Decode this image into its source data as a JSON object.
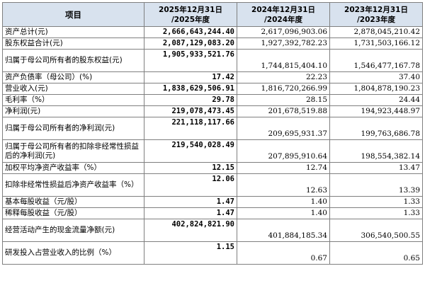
{
  "header": {
    "item": "项目",
    "col2025_line1": "2025年12月31日",
    "col2025_line2": "/2025年度",
    "col2024_line1": "2024年12月31日",
    "col2024_line2": "/2024年度",
    "col2023_line1": "2023年12月31日",
    "col2023_line2": "/2023年度"
  },
  "rows": [
    {
      "label": "资产总计(元)",
      "y2025": "2,666,643,244.40",
      "y2024": "2,617,096,903.06",
      "y2023": "2,878,045,210.42"
    },
    {
      "label": "股东权益合计(元)",
      "y2025": "2,087,129,083.20",
      "y2024": "1,927,392,782.23",
      "y2023": "1,731,503,166.12"
    },
    {
      "label": "归属于母公司所有者的股东权益(元)",
      "y2025": "1,905,933,521.76",
      "y2024": "1,744,815,404.10",
      "y2023": "1,546,477,167.78"
    },
    {
      "label": "资产负债率（母公司）(%)",
      "y2025": "17.42",
      "y2024": "22.23",
      "y2023": "37.40"
    },
    {
      "label": "营业收入(元)",
      "y2025": "1,838,629,506.91",
      "y2024": "1,816,720,266.99",
      "y2023": "1,804,878,190.23"
    },
    {
      "label": "毛利率（%）",
      "y2025": "29.78",
      "y2024": "28.15",
      "y2023": "24.44"
    },
    {
      "label": "净利润(元)",
      "y2025": "219,078,473.45",
      "y2024": "201,678,519.88",
      "y2023": "194,923,448.97"
    },
    {
      "label": "归属于母公司所有者的净利润(元)",
      "y2025": "221,118,117.66",
      "y2024": "209,695,931.37",
      "y2023": "199,763,686.78"
    },
    {
      "label": "归属于母公司所有者的扣除非经常性损益后的净利润(元)",
      "y2025": "219,540,028.49",
      "y2024": "207,895,910.64",
      "y2023": "198,554,382.14"
    },
    {
      "label": "加权平均净资产收益率（%）",
      "y2025": "12.15",
      "y2024": "12.74",
      "y2023": "13.47"
    },
    {
      "label": "扣除非经常性损益后净资产收益率（%）",
      "y2025": "12.06",
      "y2024": "12.63",
      "y2023": "13.39"
    },
    {
      "label": "基本每股收益（元/股）",
      "y2025": "1.47",
      "y2024": "1.40",
      "y2023": "1.33"
    },
    {
      "label": "稀释每股收益（元/股）",
      "y2025": "1.47",
      "y2024": "1.40",
      "y2023": "1.33"
    },
    {
      "label": "经营活动产生的现金流量净额(元)",
      "y2025": "402,824,821.90",
      "y2024": "401,884,185.34",
      "y2023": "306,540,500.55"
    },
    {
      "label": "研发投入占营业收入的比例（%）",
      "y2025": "1.15",
      "y2024": "0.67",
      "y2023": "0.65"
    }
  ]
}
